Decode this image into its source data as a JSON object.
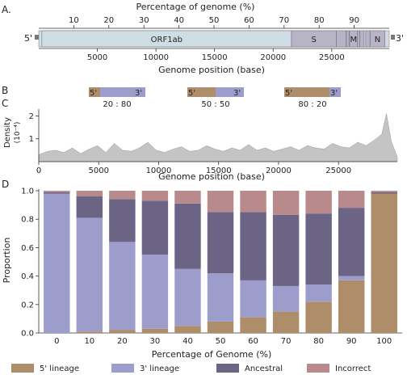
{
  "colors": {
    "five_prime": "#ae8d6a",
    "three_prime": "#9d9dcb",
    "ancestral": "#6b6485",
    "incorrect": "#b98a8c",
    "genome_body": "#cfdde4",
    "genes": "#b9b3c7",
    "density": "#c4c4c4"
  },
  "chart_data": [
    {
      "panel": "A.",
      "type": "genome-map",
      "top_axis": {
        "label": "Percentage of genome (%)",
        "ticks": [
          10,
          20,
          30,
          40,
          50,
          60,
          70,
          80,
          90
        ],
        "range": [
          0,
          100
        ]
      },
      "bottom_axis": {
        "label": "Genome position (base)",
        "ticks": [
          5000,
          10000,
          15000,
          20000,
          25000
        ],
        "range": [
          0,
          29903
        ]
      },
      "end_labels": [
        "5'",
        "3'"
      ],
      "genes": [
        {
          "name": "ORF1ab",
          "start": 266,
          "end": 21555
        },
        {
          "name": "S",
          "start": 21563,
          "end": 25384
        },
        {
          "name": "",
          "start": 25393,
          "end": 26220
        },
        {
          "name": "",
          "start": 26245,
          "end": 26472
        },
        {
          "name": "M",
          "start": 26523,
          "end": 27191
        },
        {
          "name": "",
          "start": 27202,
          "end": 27387
        },
        {
          "name": "",
          "start": 27394,
          "end": 27759
        },
        {
          "name": "",
          "start": 27894,
          "end": 28259
        },
        {
          "name": "N",
          "start": 28274,
          "end": 29533
        }
      ]
    },
    {
      "panel": "B",
      "type": "schematic",
      "items": [
        {
          "five": "5'",
          "three": "3'",
          "five_fraction": 0.2,
          "ratio": "20 : 80"
        },
        {
          "five": "5'",
          "three": "3'",
          "five_fraction": 0.5,
          "ratio": "50 : 50"
        },
        {
          "five": "5'",
          "three": "3'",
          "five_fraction": 0.8,
          "ratio": "80 : 20"
        }
      ]
    },
    {
      "panel": "C",
      "type": "area",
      "ylabel": "Density",
      "ylabel_unit": "(10⁻⁴)",
      "xlabel": "Genome position (base)",
      "xlim": [
        0,
        29903
      ],
      "ylim": [
        0,
        2.3
      ],
      "xticks": [
        0,
        5000,
        10000,
        15000,
        20000,
        25000
      ],
      "yticks": [
        1,
        2
      ],
      "x": [
        0,
        700,
        1400,
        2100,
        2800,
        3500,
        4200,
        4900,
        5600,
        6300,
        7000,
        7700,
        8400,
        9100,
        9800,
        10500,
        11200,
        11900,
        12600,
        13300,
        14000,
        14700,
        15400,
        16100,
        16800,
        17500,
        18200,
        18900,
        19600,
        20300,
        21000,
        21700,
        22400,
        23100,
        23800,
        24500,
        25200,
        25900,
        26600,
        27300,
        28000,
        28600,
        29000,
        29400,
        29903
      ],
      "y": [
        0.3,
        0.45,
        0.5,
        0.4,
        0.6,
        0.35,
        0.55,
        0.7,
        0.4,
        0.8,
        0.5,
        0.45,
        0.6,
        0.85,
        0.5,
        0.4,
        0.55,
        0.65,
        0.45,
        0.5,
        0.7,
        0.55,
        0.45,
        0.6,
        0.5,
        0.75,
        0.5,
        0.6,
        0.45,
        0.55,
        0.65,
        0.5,
        0.7,
        0.6,
        0.55,
        0.8,
        0.65,
        0.6,
        0.85,
        0.7,
        0.95,
        1.2,
        2.1,
        0.9,
        0.2
      ]
    },
    {
      "panel": "D",
      "type": "bar",
      "stacked": true,
      "categories": [
        "0",
        "10",
        "20",
        "30",
        "40",
        "50",
        "60",
        "70",
        "80",
        "90",
        "100"
      ],
      "xlabel": "Percentage of Genome (%)",
      "ylabel": "Proportion",
      "ylim": [
        0,
        1.0
      ],
      "yticks": [
        0.0,
        0.2,
        0.4,
        0.6,
        0.8,
        1.0
      ],
      "series": [
        {
          "name": "5' lineage",
          "values": [
            0.0,
            0.01,
            0.02,
            0.03,
            0.05,
            0.08,
            0.11,
            0.15,
            0.22,
            0.37,
            0.98
          ]
        },
        {
          "name": "3' lineage",
          "values": [
            0.98,
            0.8,
            0.62,
            0.52,
            0.4,
            0.34,
            0.26,
            0.18,
            0.12,
            0.03,
            0.0
          ]
        },
        {
          "name": "Ancestral",
          "values": [
            0.01,
            0.15,
            0.3,
            0.38,
            0.46,
            0.43,
            0.48,
            0.5,
            0.5,
            0.48,
            0.01
          ]
        },
        {
          "name": "Incorrect",
          "values": [
            0.01,
            0.04,
            0.06,
            0.07,
            0.09,
            0.15,
            0.15,
            0.17,
            0.16,
            0.12,
            0.01
          ]
        }
      ],
      "legend_position": "bottom"
    }
  ]
}
